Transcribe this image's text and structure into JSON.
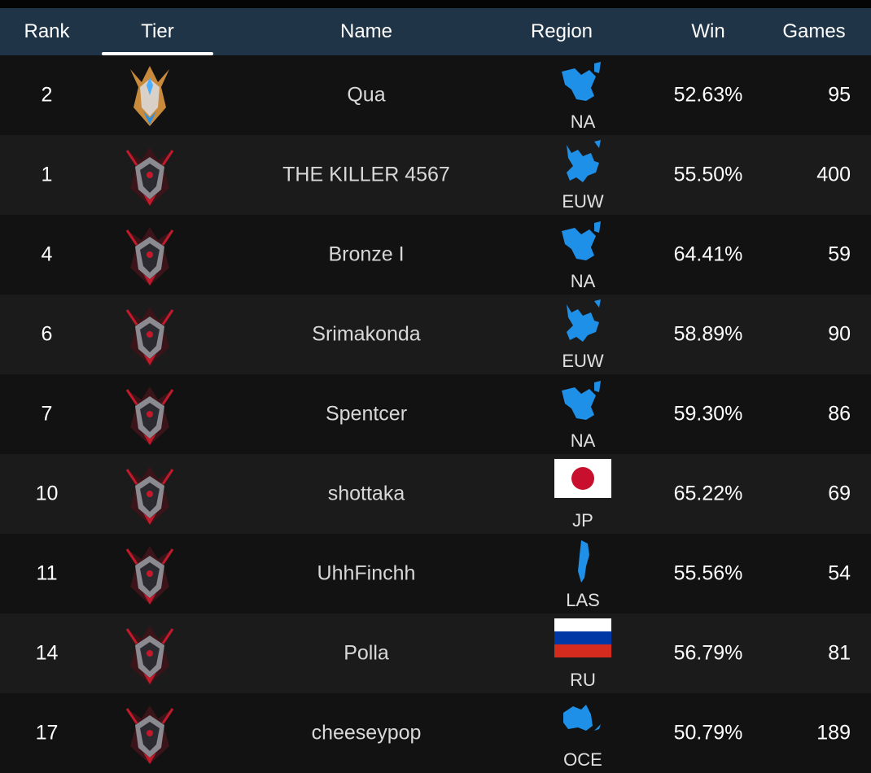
{
  "header": {
    "rank": "Rank",
    "tier": "Tier",
    "name": "Name",
    "region": "Region",
    "win": "Win",
    "games": "Games",
    "active_tab": "Tier"
  },
  "colors": {
    "header_bg": "#1f3447",
    "region_blue": "#1e90e8",
    "challenger_gold": "#c98a3c",
    "master_red": "#c21a2a"
  },
  "rows": [
    {
      "rank": "2",
      "tier_icon": "challenger-emblem",
      "name": "Qua",
      "region": "NA",
      "region_icon": "na-map",
      "win": "52.63%",
      "games": "95"
    },
    {
      "rank": "1",
      "tier_icon": "master-emblem",
      "name": "THE KILLER 4567",
      "region": "EUW",
      "region_icon": "euw-map",
      "win": "55.50%",
      "games": "400"
    },
    {
      "rank": "4",
      "tier_icon": "master-emblem",
      "name": "Bronze I",
      "region": "NA",
      "region_icon": "na-map",
      "win": "64.41%",
      "games": "59"
    },
    {
      "rank": "6",
      "tier_icon": "master-emblem",
      "name": "Srimakonda",
      "region": "EUW",
      "region_icon": "euw-map",
      "win": "58.89%",
      "games": "90"
    },
    {
      "rank": "7",
      "tier_icon": "master-emblem",
      "name": "Spentcer",
      "region": "NA",
      "region_icon": "na-map",
      "win": "59.30%",
      "games": "86"
    },
    {
      "rank": "10",
      "tier_icon": "master-emblem",
      "name": "shottaka",
      "region": "JP",
      "region_icon": "japan-flag",
      "win": "65.22%",
      "games": "69"
    },
    {
      "rank": "11",
      "tier_icon": "master-emblem",
      "name": "UhhFinchh",
      "region": "LAS",
      "region_icon": "las-map",
      "win": "55.56%",
      "games": "54"
    },
    {
      "rank": "14",
      "tier_icon": "master-emblem",
      "name": "Polla",
      "region": "RU",
      "region_icon": "russia-flag",
      "win": "56.79%",
      "games": "81"
    },
    {
      "rank": "17",
      "tier_icon": "master-emblem",
      "name": "cheeseypop",
      "region": "OCE",
      "region_icon": "oce-map",
      "win": "50.79%",
      "games": "189"
    }
  ]
}
